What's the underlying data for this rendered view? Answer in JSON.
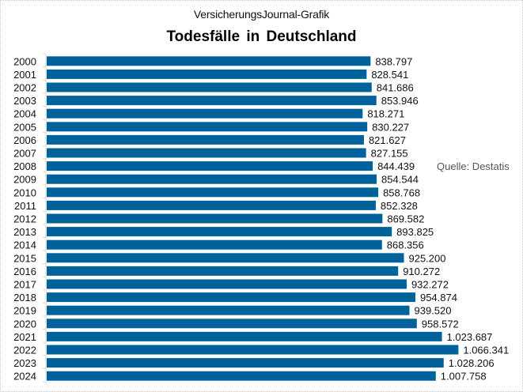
{
  "header": {
    "source_label": "VersicherungsJournal-Grafik",
    "title": "Todesfälle  in Deutschland"
  },
  "credit": "Quelle: Destatis",
  "colors": {
    "bar": "#00629a",
    "axis": "#d9d9d9"
  },
  "chart_data": {
    "type": "bar",
    "orientation": "horizontal",
    "title": "Todesfälle  in Deutschland",
    "subtitle": "VersicherungsJournal-Grafik",
    "xlabel": "",
    "ylabel": "",
    "xlim": [
      0,
      1200000
    ],
    "grid": false,
    "legend": "none",
    "annotation": "Quelle: Destatis",
    "categories": [
      "2000",
      "2001",
      "2002",
      "2003",
      "2004",
      "2005",
      "2006",
      "2007",
      "2008",
      "2009",
      "2010",
      "2011",
      "2012",
      "2013",
      "2014",
      "2015",
      "2016",
      "2017",
      "2018",
      "2019",
      "2020",
      "2021",
      "2022",
      "2023",
      "2024"
    ],
    "values": [
      838797,
      828541,
      841686,
      853946,
      818271,
      830227,
      821627,
      827155,
      844439,
      854544,
      858768,
      852328,
      869582,
      893825,
      868356,
      925200,
      910272,
      932272,
      954874,
      939520,
      958572,
      1023687,
      1066341,
      1028206,
      1007758
    ],
    "data_labels": [
      "838.797",
      "828.541",
      "841.686",
      "853.946",
      "818.271",
      "830.227",
      "821.627",
      "827.155",
      "844.439",
      "854.544",
      "858.768",
      "852.328",
      "869.582",
      "893.825",
      "868.356",
      "925.200",
      "910.272",
      "932.272",
      "954.874",
      "939.520",
      "958.572",
      "1.023.687",
      "1.066.341",
      "1.028.206",
      "1.007.758"
    ]
  }
}
